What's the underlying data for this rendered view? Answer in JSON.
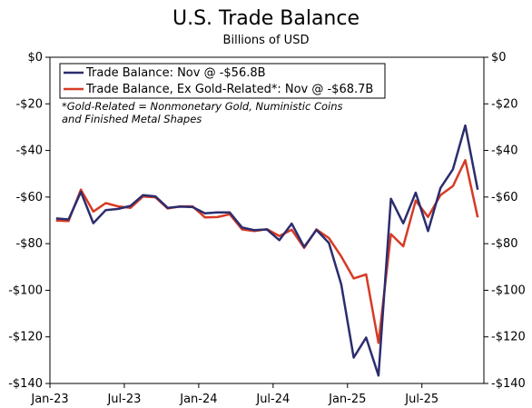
{
  "chart_data": {
    "type": "line",
    "title": "U.S. Trade Balance",
    "subtitle": "Billions of USD",
    "ylim": [
      -140,
      0
    ],
    "yticks": [
      0,
      -20,
      -40,
      -60,
      -80,
      -100,
      -120,
      -140
    ],
    "ytick_labels": [
      "$0",
      "-$20",
      "-$40",
      "-$60",
      "-$80",
      "-$100",
      "-$120",
      "-$140"
    ],
    "xtick_labels": [
      "Jan-23",
      "Jul-23",
      "Jan-24",
      "Jul-24",
      "Jan-25",
      "Jul-25"
    ],
    "xtick_index": [
      0,
      6,
      12,
      18,
      24,
      30
    ],
    "x": [
      "2023-01",
      "2023-02",
      "2023-03",
      "2023-04",
      "2023-05",
      "2023-06",
      "2023-07",
      "2023-08",
      "2023-09",
      "2023-10",
      "2023-11",
      "2023-12",
      "2024-01",
      "2024-02",
      "2024-03",
      "2024-04",
      "2024-05",
      "2024-06",
      "2024-07",
      "2024-08",
      "2024-09",
      "2024-10",
      "2024-11",
      "2024-12",
      "2025-01",
      "2025-02",
      "2025-03",
      "2025-04",
      "2025-05",
      "2025-06",
      "2025-07",
      "2025-08",
      "2025-09",
      "2025-10",
      "2025-11"
    ],
    "series": [
      {
        "name": "Trade Balance: Nov @ -$56.8B",
        "color": "#2b2d6e",
        "values": [
          -69.2,
          -69.6,
          -57.8,
          -71.2,
          -65.6,
          -65.1,
          -63.8,
          -59.2,
          -59.7,
          -64.6,
          -64.1,
          -64.3,
          -67.0,
          -66.6,
          -66.6,
          -73.1,
          -74.2,
          -73.9,
          -78.5,
          -71.4,
          -81.4,
          -74.1,
          -79.7,
          -97.5,
          -128.9,
          -120.3,
          -136.6,
          -60.7,
          -71.3,
          -58.1,
          -74.6,
          -56.1,
          -48.1,
          -29.3,
          -56.8
        ]
      },
      {
        "name": "Trade Balance, Ex Gold-Related*: Nov @ -$68.7B",
        "color": "#d63b26",
        "values": [
          -70.1,
          -70.3,
          -56.8,
          -66.2,
          -62.6,
          -64.0,
          -64.6,
          -59.8,
          -60.1,
          -64.9,
          -64.0,
          -64.0,
          -68.7,
          -68.6,
          -67.4,
          -73.9,
          -74.6,
          -73.8,
          -76.7,
          -74.0,
          -81.8,
          -73.9,
          -77.6,
          -85.5,
          -94.9,
          -93.2,
          -122.6,
          -75.9,
          -81.1,
          -61.5,
          -68.5,
          -59.2,
          -55.3,
          -44.2,
          -68.7
        ]
      }
    ],
    "legend_placement": "top-left",
    "note": [
      "*Gold-Related = Nonmonetary Gold, Nuministic Coins",
      "and Finished Metal Shapes"
    ],
    "grid": false
  }
}
